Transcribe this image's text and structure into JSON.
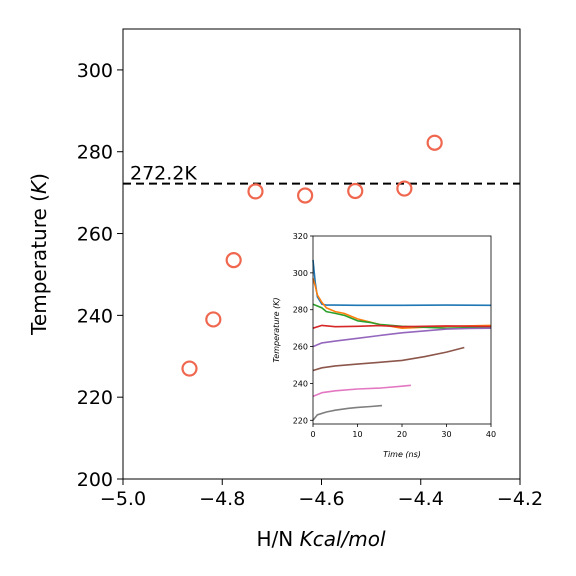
{
  "chart_data": [
    {
      "type": "scatter",
      "xlabel_prefix": "H/N ",
      "xlabel_unit": "Kcal/mol",
      "ylabel_prefix": "Temperature (",
      "ylabel_unit": "K",
      "ylabel_suffix": ")",
      "xlim": [
        -5.0,
        -4.2
      ],
      "ylim": [
        200,
        310
      ],
      "xticks": [
        -5.0,
        -4.8,
        -4.6,
        -4.4,
        -4.2
      ],
      "xtick_labels": [
        "−5.0",
        "−4.8",
        "−4.6",
        "−4.4",
        "−4.2"
      ],
      "yticks": [
        200,
        220,
        240,
        260,
        280,
        300
      ],
      "ytick_labels": [
        "200",
        "220",
        "240",
        "260",
        "280",
        "300"
      ],
      "marker_color": "#f0674f",
      "points": [
        {
          "x": -4.866,
          "y": 227.0
        },
        {
          "x": -4.818,
          "y": 239.0
        },
        {
          "x": -4.777,
          "y": 253.5
        },
        {
          "x": -4.733,
          "y": 270.3
        },
        {
          "x": -4.633,
          "y": 269.3
        },
        {
          "x": -4.532,
          "y": 270.4
        },
        {
          "x": -4.433,
          "y": 271.0
        },
        {
          "x": -4.372,
          "y": 282.2
        }
      ],
      "reference_line": {
        "y": 272.2,
        "label": "272.2K",
        "style": "dashed",
        "color": "#000000"
      }
    },
    {
      "type": "line",
      "xlabel_unit": "Time (ns)",
      "ylabel_unit": "Temperature (K)",
      "xlim": [
        0,
        40
      ],
      "ylim": [
        218,
        320
      ],
      "xticks": [
        0,
        10,
        20,
        30,
        40
      ],
      "xtick_labels": [
        "0",
        "10",
        "20",
        "30",
        "40"
      ],
      "yticks": [
        220,
        240,
        260,
        280,
        300,
        320
      ],
      "ytick_labels": [
        "220",
        "240",
        "260",
        "280",
        "300",
        "320"
      ],
      "series": [
        {
          "color": "#1f77b4",
          "x": [
            0,
            0.5,
            1,
            2,
            3,
            5,
            10,
            20,
            30,
            40
          ],
          "y": [
            307,
            295,
            287,
            283,
            282.5,
            282.5,
            282.4,
            282.4,
            282.5,
            282.4
          ]
        },
        {
          "color": "#ff7f0e",
          "x": [
            0,
            0.5,
            1,
            2,
            3,
            5,
            7,
            10,
            15,
            20,
            30,
            40
          ],
          "y": [
            297,
            293,
            288,
            284,
            281,
            279,
            278,
            275,
            272,
            270,
            271,
            271.5
          ]
        },
        {
          "color": "#2ca02c",
          "x": [
            0,
            1,
            2,
            3,
            5,
            7,
            10,
            13,
            15,
            20,
            30,
            40
          ],
          "y": [
            283,
            282,
            281,
            279,
            278,
            277,
            274,
            273,
            272,
            271,
            270,
            270.5
          ]
        },
        {
          "color": "#d62728",
          "x": [
            0,
            2,
            5,
            10,
            15,
            20,
            30,
            40
          ],
          "y": [
            270,
            271.5,
            270.8,
            271,
            271.4,
            270.8,
            271.2,
            270.9
          ]
        },
        {
          "color": "#9467bd",
          "x": [
            0,
            2,
            5,
            10,
            15,
            20,
            25,
            30,
            35,
            40
          ],
          "y": [
            260,
            262,
            263,
            264.5,
            266,
            267.5,
            268.5,
            269.5,
            269.8,
            270
          ]
        },
        {
          "color": "#8c564b",
          "x": [
            0,
            2,
            5,
            10,
            15,
            20,
            25,
            30,
            34
          ],
          "y": [
            247,
            248.5,
            249.5,
            250.5,
            251.5,
            252.5,
            254.5,
            257,
            259.5
          ]
        },
        {
          "color": "#e377c2",
          "x": [
            0,
            2,
            5,
            10,
            15,
            20,
            22
          ],
          "y": [
            233,
            235,
            236,
            237,
            237.5,
            238.5,
            239
          ]
        },
        {
          "color": "#7f7f7f",
          "x": [
            0,
            1,
            3,
            5,
            8,
            10,
            13,
            15.5
          ],
          "y": [
            220,
            223,
            224.5,
            225.5,
            226.5,
            227,
            227.5,
            228
          ]
        }
      ]
    }
  ]
}
